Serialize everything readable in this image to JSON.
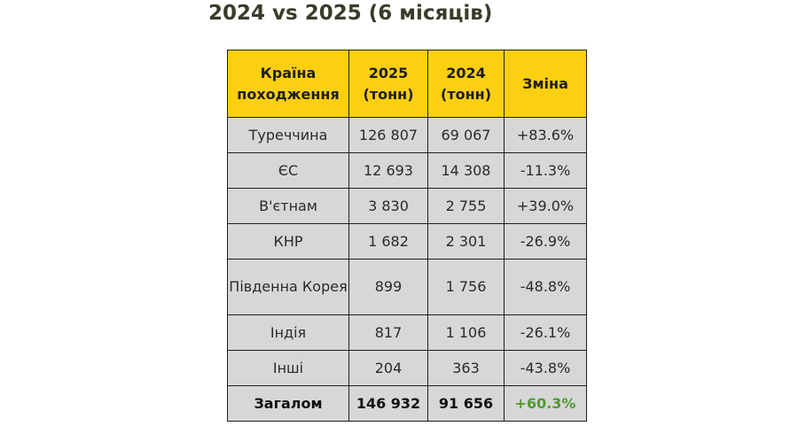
{
  "title": "2024 vs 2025 (6 місяців)",
  "table": {
    "headers": {
      "country": "Країна походження",
      "y2025": "2025 (тонн)",
      "y2024": "2024 (тонн)",
      "change": "Зміна"
    },
    "rows": [
      {
        "country": "Туреччина",
        "y2025": "126 807",
        "y2024": "69 067",
        "change": "+83.6%",
        "trend": "up"
      },
      {
        "country": "ЄС",
        "y2025": "12 693",
        "y2024": "14 308",
        "change": "-11.3%",
        "trend": "down"
      },
      {
        "country": "В'єтнам",
        "y2025": "3 830",
        "y2024": "2 755",
        "change": "+39.0%",
        "trend": "up"
      },
      {
        "country": "КНР",
        "y2025": "1 682",
        "y2024": "2 301",
        "change": "-26.9%",
        "trend": "down"
      },
      {
        "country": "Південна Корея",
        "y2025": "899",
        "y2024": "1 756",
        "change": "-48.8%",
        "trend": "down"
      },
      {
        "country": "Індія",
        "y2025": "817",
        "y2024": "1 106",
        "change": "-26.1%",
        "trend": "down"
      },
      {
        "country": "Інші",
        "y2025": "204",
        "y2024": "363",
        "change": "-43.8%",
        "trend": "down"
      }
    ],
    "total": {
      "country": "Загалом",
      "y2025": "146 932",
      "y2024": "91 656",
      "change": "+60.3%",
      "trend": "up"
    }
  },
  "colors": {
    "header_bg": "#fccf11",
    "cell_bg": "#d7d7d7",
    "positive": "#5f9b3c",
    "negative": "#e3565a"
  }
}
